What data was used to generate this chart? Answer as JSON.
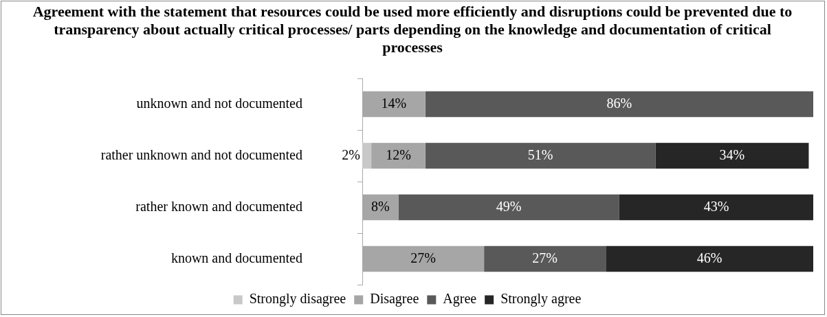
{
  "chart_data": {
    "type": "bar",
    "orientation": "horizontal",
    "stacked": true,
    "legend": "bottom",
    "tick_labels": "y",
    "title": "Agreement with the statement that resources could be used more efficiently and disruptions could be prevented due to transparency about actually critical processes/ parts depending on the knowledge and documentation of critical processes",
    "categories": [
      "unknown and not documented",
      "rather unknown and not documented",
      "rather known and documented",
      "known and documented"
    ],
    "series": [
      {
        "name": "Strongly disagree",
        "color": "#c8c8c8",
        "values": [
          null,
          2,
          null,
          null
        ],
        "value_labels": [
          null,
          "2%",
          null,
          null
        ]
      },
      {
        "name": "Disagree",
        "color": "#a6a6a6",
        "values": [
          14,
          12,
          8,
          27
        ],
        "value_labels": [
          "14%",
          "12%",
          "8%",
          "27%"
        ]
      },
      {
        "name": "Agree",
        "color": "#595959",
        "values": [
          86,
          51,
          49,
          27
        ],
        "value_labels": [
          "86%",
          "51%",
          "49%",
          "27%"
        ]
      },
      {
        "name": "Strongly agree",
        "color": "#262626",
        "values": [
          null,
          34,
          43,
          46
        ],
        "value_labels": [
          null,
          "34%",
          "43%",
          "46%"
        ]
      }
    ]
  }
}
